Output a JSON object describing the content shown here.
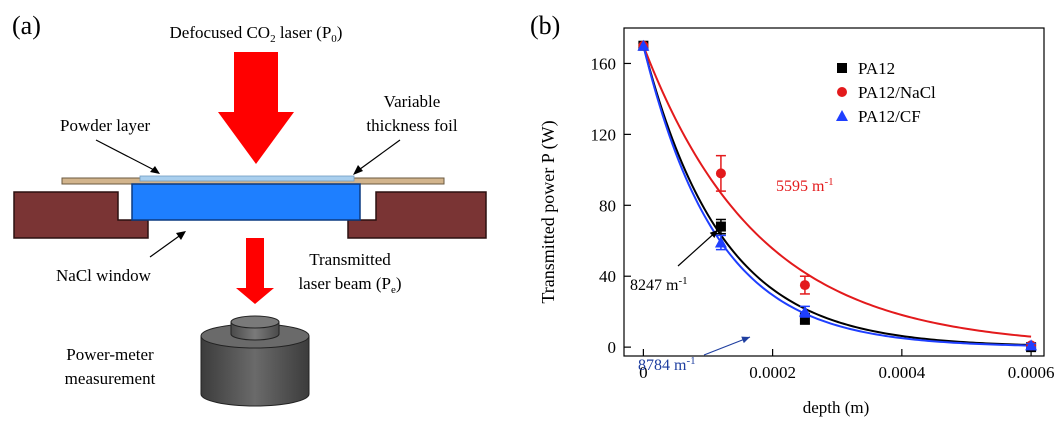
{
  "panel_a": {
    "label": "(a)",
    "laser": {
      "text": "Defocused CO",
      "sub": "2",
      "tail": " laser (P",
      "sub2": "0",
      "end": ")"
    },
    "powder_layer": "Powder layer",
    "foil": [
      "Variable",
      "thickness foil"
    ],
    "window": "NaCl window",
    "transmitted": [
      "Transmitted",
      "laser beam (P",
      "e",
      ")"
    ],
    "meter": [
      "Power-meter",
      "measurement"
    ],
    "colors": {
      "laser": "#ff0000",
      "window": "#1e7fff",
      "mount": "#7a3434",
      "foil": "#d2b48c",
      "powder": "#9ec6e8",
      "meter": "#555555"
    }
  },
  "panel_b": {
    "label": "(b)",
    "chart_data": {
      "type": "scatter",
      "xlabel": "depth (m)",
      "ylabel": "Transmitted power P (W)",
      "xlim": [
        -3e-05,
        0.00062
      ],
      "ylim": [
        -5,
        180
      ],
      "xticks": [
        0,
        0.0002,
        0.0004,
        0.0006
      ],
      "xtick_labels": [
        "0",
        "0.0002",
        "0.0004",
        "0.0006"
      ],
      "yticks": [
        0,
        40,
        80,
        120,
        160
      ],
      "ytick_labels": [
        "0",
        "40",
        "80",
        "120",
        "160"
      ],
      "legend_position": "top-right",
      "series": [
        {
          "name": "PA12",
          "color": "#000000",
          "marker": "square",
          "P0": 170,
          "alpha": 8247,
          "x": [
            0,
            0.00012,
            0.00025,
            0.0006
          ],
          "y": [
            170,
            68,
            16,
            0
          ],
          "err": [
            0,
            4,
            3,
            1
          ]
        },
        {
          "name": "PA12/NaCl",
          "color": "#e31a1c",
          "marker": "circle",
          "P0": 170,
          "alpha": 5595,
          "x": [
            0,
            0.00012,
            0.00025,
            0.0006
          ],
          "y": [
            170,
            98,
            35,
            1
          ],
          "err": [
            0,
            10,
            5,
            1
          ]
        },
        {
          "name": "PA12/CF",
          "color": "#1f3fff",
          "marker": "triangle",
          "P0": 170,
          "alpha": 8784,
          "x": [
            0,
            0.00012,
            0.00025,
            0.0006
          ],
          "y": [
            170,
            59,
            20,
            1
          ],
          "err": [
            0,
            4,
            3,
            1
          ]
        }
      ],
      "annotations": [
        {
          "text": "5595 m",
          "sup": "-1",
          "color": "#e31a1c"
        },
        {
          "text": "8247 m",
          "sup": "-1",
          "color": "#000000"
        },
        {
          "text": "8784 m",
          "sup": "-1",
          "color": "#1f3fa0"
        }
      ]
    }
  }
}
